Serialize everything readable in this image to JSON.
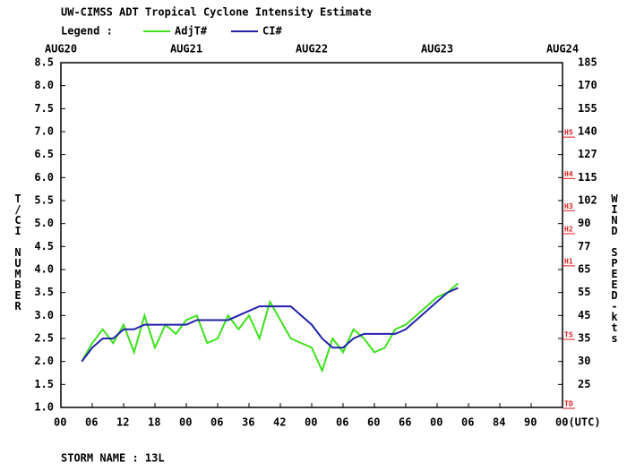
{
  "chart_data": {
    "type": "line",
    "title": "UW-CIMSS ADT Tropical Cyclone Intensity Estimate",
    "legend_label": "Legend :",
    "y_label": "T/CI NUMBER",
    "y2_label": "WIND SPEED-kts",
    "footer": "STORM NAME : 13L",
    "x": [
      4,
      6,
      8,
      10,
      12,
      14,
      16,
      18,
      20,
      22,
      24,
      26,
      28,
      30,
      32,
      34,
      36,
      38,
      40,
      42,
      44,
      46,
      48,
      50,
      52,
      54,
      56,
      58,
      60,
      62,
      64,
      66,
      68,
      70,
      72,
      74,
      76
    ],
    "series": [
      {
        "name": "AdjT#",
        "color": "#3ee01e",
        "values": [
          2.0,
          2.4,
          2.7,
          2.4,
          2.8,
          2.2,
          3.0,
          2.3,
          2.8,
          2.6,
          2.9,
          3.0,
          2.4,
          2.5,
          3.0,
          2.7,
          3.0,
          2.5,
          3.3,
          2.9,
          2.5,
          2.4,
          2.3,
          1.8,
          2.5,
          2.2,
          2.7,
          2.5,
          2.2,
          2.3,
          2.7,
          2.8,
          3.0,
          3.2,
          3.4,
          3.5,
          3.7
        ]
      },
      {
        "name": "CI#",
        "color": "#2222aa",
        "values": [
          2.0,
          2.3,
          2.5,
          2.5,
          2.7,
          2.7,
          2.8,
          2.8,
          2.8,
          2.8,
          2.8,
          2.9,
          2.9,
          2.9,
          2.9,
          3.0,
          3.1,
          3.2,
          3.2,
          3.2,
          3.2,
          3.0,
          2.8,
          2.5,
          2.3,
          2.3,
          2.5,
          2.6,
          2.6,
          2.6,
          2.6,
          2.7,
          2.9,
          3.1,
          3.3,
          3.5,
          3.6
        ]
      }
    ],
    "xlim": [
      0,
      96
    ],
    "xticks": [
      {
        "value": 0,
        "label": "00"
      },
      {
        "value": 6,
        "label": "06"
      },
      12,
      18,
      {
        "value": 24,
        "label": "00"
      },
      {
        "value": 30,
        "label": "06"
      },
      36,
      42,
      {
        "value": 48,
        "label": "00"
      },
      {
        "value": 54,
        "label": "06"
      },
      60,
      66,
      {
        "value": 72,
        "label": "00"
      },
      {
        "value": 78,
        "label": "06"
      },
      84,
      90,
      {
        "value": 96,
        "label": "00(UTC)"
      }
    ],
    "top_xticks": [
      {
        "value": 0,
        "label": "AUG20"
      },
      {
        "value": 24,
        "label": "AUG21"
      },
      {
        "value": 48,
        "label": "AUG22"
      },
      {
        "value": 72,
        "label": "AUG23"
      },
      {
        "value": 96,
        "label": "AUG24"
      }
    ],
    "ylim": [
      1.0,
      8.5
    ],
    "yticks": [
      {
        "value": 1.0,
        "label": "1.0"
      },
      1.5,
      {
        "value": 2.0,
        "label": "2.0"
      },
      2.5,
      {
        "value": 3.0,
        "label": "3.0"
      },
      3.5,
      {
        "value": 4.0,
        "label": "4.0"
      },
      4.5,
      {
        "value": 5.0,
        "label": "5.0"
      },
      5.5,
      {
        "value": 6.0,
        "label": "6.0"
      },
      6.5,
      {
        "value": 7.0,
        "label": "7.0"
      },
      7.5,
      {
        "value": 8.0,
        "label": "8.0"
      },
      8.5
    ],
    "wind_speed_ticks": [
      {
        "value": 1.5,
        "label": "25"
      },
      {
        "value": 2.0,
        "label": "30"
      },
      {
        "value": 2.5,
        "label": "35"
      },
      {
        "value": 3.0,
        "label": "45"
      },
      {
        "value": 3.5,
        "label": "55"
      },
      {
        "value": 4.0,
        "label": "65"
      },
      {
        "value": 4.5,
        "label": "77"
      },
      {
        "value": 5.0,
        "label": "90"
      },
      {
        "value": 5.5,
        "label": "102"
      },
      {
        "value": 6.0,
        "label": "115"
      },
      {
        "value": 6.5,
        "label": "127"
      },
      {
        "value": 7.0,
        "label": "140"
      },
      {
        "value": 7.5,
        "label": "155"
      },
      {
        "value": 8.0,
        "label": "170"
      },
      {
        "value": 8.5,
        "label": "185"
      }
    ],
    "intensity_markers": [
      {
        "label": "TD",
        "value": 1.0
      },
      {
        "label": "TS",
        "value": 2.5
      },
      {
        "label": "H1",
        "value": 4.1
      },
      {
        "label": "H2",
        "value": 4.8
      },
      {
        "label": "H3",
        "value": 5.3
      },
      {
        "label": "H4",
        "value": 6.0
      },
      {
        "label": "H5",
        "value": 6.9
      }
    ],
    "marker_color": "#e01818",
    "grid": false
  }
}
